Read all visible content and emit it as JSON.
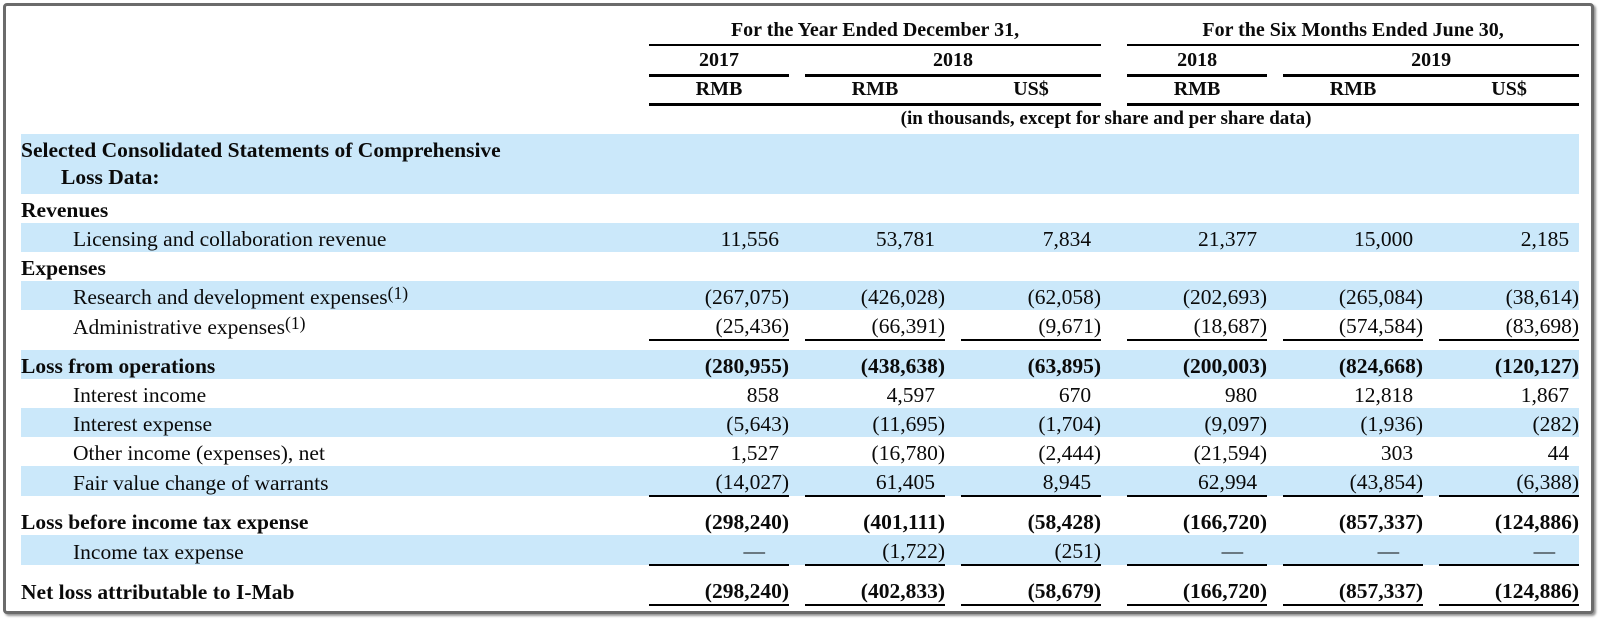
{
  "colors": {
    "stripe_blue": "#cbe8fa",
    "rule_black": "#000000",
    "frame_gray": "#6b6b6b"
  },
  "header": {
    "groups": [
      {
        "title": "For the Year Ended December 31,",
        "years": [
          {
            "label": "2017",
            "currencies": [
              "RMB"
            ]
          },
          {
            "label": "2018",
            "currencies": [
              "RMB",
              "US$"
            ]
          }
        ]
      },
      {
        "title": "For the Six Months Ended June 30,",
        "years": [
          {
            "label": "2018",
            "currencies": [
              "RMB"
            ]
          },
          {
            "label": "2019",
            "currencies": [
              "RMB",
              "US$"
            ]
          }
        ]
      }
    ],
    "currencies": [
      "RMB",
      "RMB",
      "US$",
      "RMB",
      "RMB",
      "US$"
    ],
    "units_note": "(in thousands, except for share and per share data)"
  },
  "rows": [
    {
      "type": "title",
      "lines": [
        "Selected Consolidated Statements of Comprehensive",
        "Loss Data:"
      ],
      "shade": true
    },
    {
      "type": "section",
      "label": "Revenues",
      "bold": true,
      "shade": false
    },
    {
      "type": "data",
      "label": "Licensing and collaboration revenue",
      "indent": true,
      "shade": true,
      "values": [
        "11,556",
        "53,781",
        "7,834",
        "21,377",
        "15,000",
        "2,185"
      ]
    },
    {
      "type": "section",
      "label": "Expenses",
      "bold": true,
      "shade": false
    },
    {
      "type": "data",
      "label": "Research and development expenses",
      "footnote": "(1)",
      "indent": true,
      "shade": true,
      "values": [
        "(267,075)",
        "(426,028)",
        "(62,058)",
        "(202,693)",
        "(265,084)",
        "(38,614)"
      ]
    },
    {
      "type": "data",
      "label": "Administrative expenses",
      "footnote": "(1)",
      "indent": true,
      "shade": false,
      "underline": true,
      "values": [
        "(25,436)",
        "(66,391)",
        "(9,671)",
        "(18,687)",
        "(574,584)",
        "(83,698)"
      ]
    },
    {
      "type": "spacer"
    },
    {
      "type": "data",
      "label": "Loss from operations",
      "bold": true,
      "shade": true,
      "values": [
        "(280,955)",
        "(438,638)",
        "(63,895)",
        "(200,003)",
        "(824,668)",
        "(120,127)"
      ]
    },
    {
      "type": "data",
      "label": "Interest income",
      "indent": true,
      "shade": false,
      "values": [
        "858",
        "4,597",
        "670",
        "980",
        "12,818",
        "1,867"
      ]
    },
    {
      "type": "data",
      "label": "Interest expense",
      "indent": true,
      "shade": true,
      "values": [
        "(5,643)",
        "(11,695)",
        "(1,704)",
        "(9,097)",
        "(1,936)",
        "(282)"
      ]
    },
    {
      "type": "data",
      "label": "Other income (expenses), net",
      "indent": true,
      "shade": false,
      "values": [
        "1,527",
        "(16,780)",
        "(2,444)",
        "(21,594)",
        "303",
        "44"
      ]
    },
    {
      "type": "data",
      "label": "Fair value change of warrants",
      "indent": true,
      "shade": true,
      "underline": true,
      "values": [
        "(14,027)",
        "61,405",
        "8,945",
        "62,994",
        "(43,854)",
        "(6,388)"
      ]
    },
    {
      "type": "spacer"
    },
    {
      "type": "data",
      "label": "Loss before income tax expense",
      "bold": true,
      "shade": false,
      "values": [
        "(298,240)",
        "(401,111)",
        "(58,428)",
        "(166,720)",
        "(857,337)",
        "(124,886)"
      ]
    },
    {
      "type": "data",
      "label": "Income tax expense",
      "indent": true,
      "shade": true,
      "underline": true,
      "values": [
        "—",
        "(1,722)",
        "(251)",
        "—",
        "—",
        "—"
      ]
    },
    {
      "type": "spacer"
    },
    {
      "type": "data",
      "label": "Net loss attributable to I-Mab",
      "bold": true,
      "shade": false,
      "underline": true,
      "values": [
        "(298,240)",
        "(402,833)",
        "(58,679)",
        "(166,720)",
        "(857,337)",
        "(124,886)"
      ]
    }
  ]
}
